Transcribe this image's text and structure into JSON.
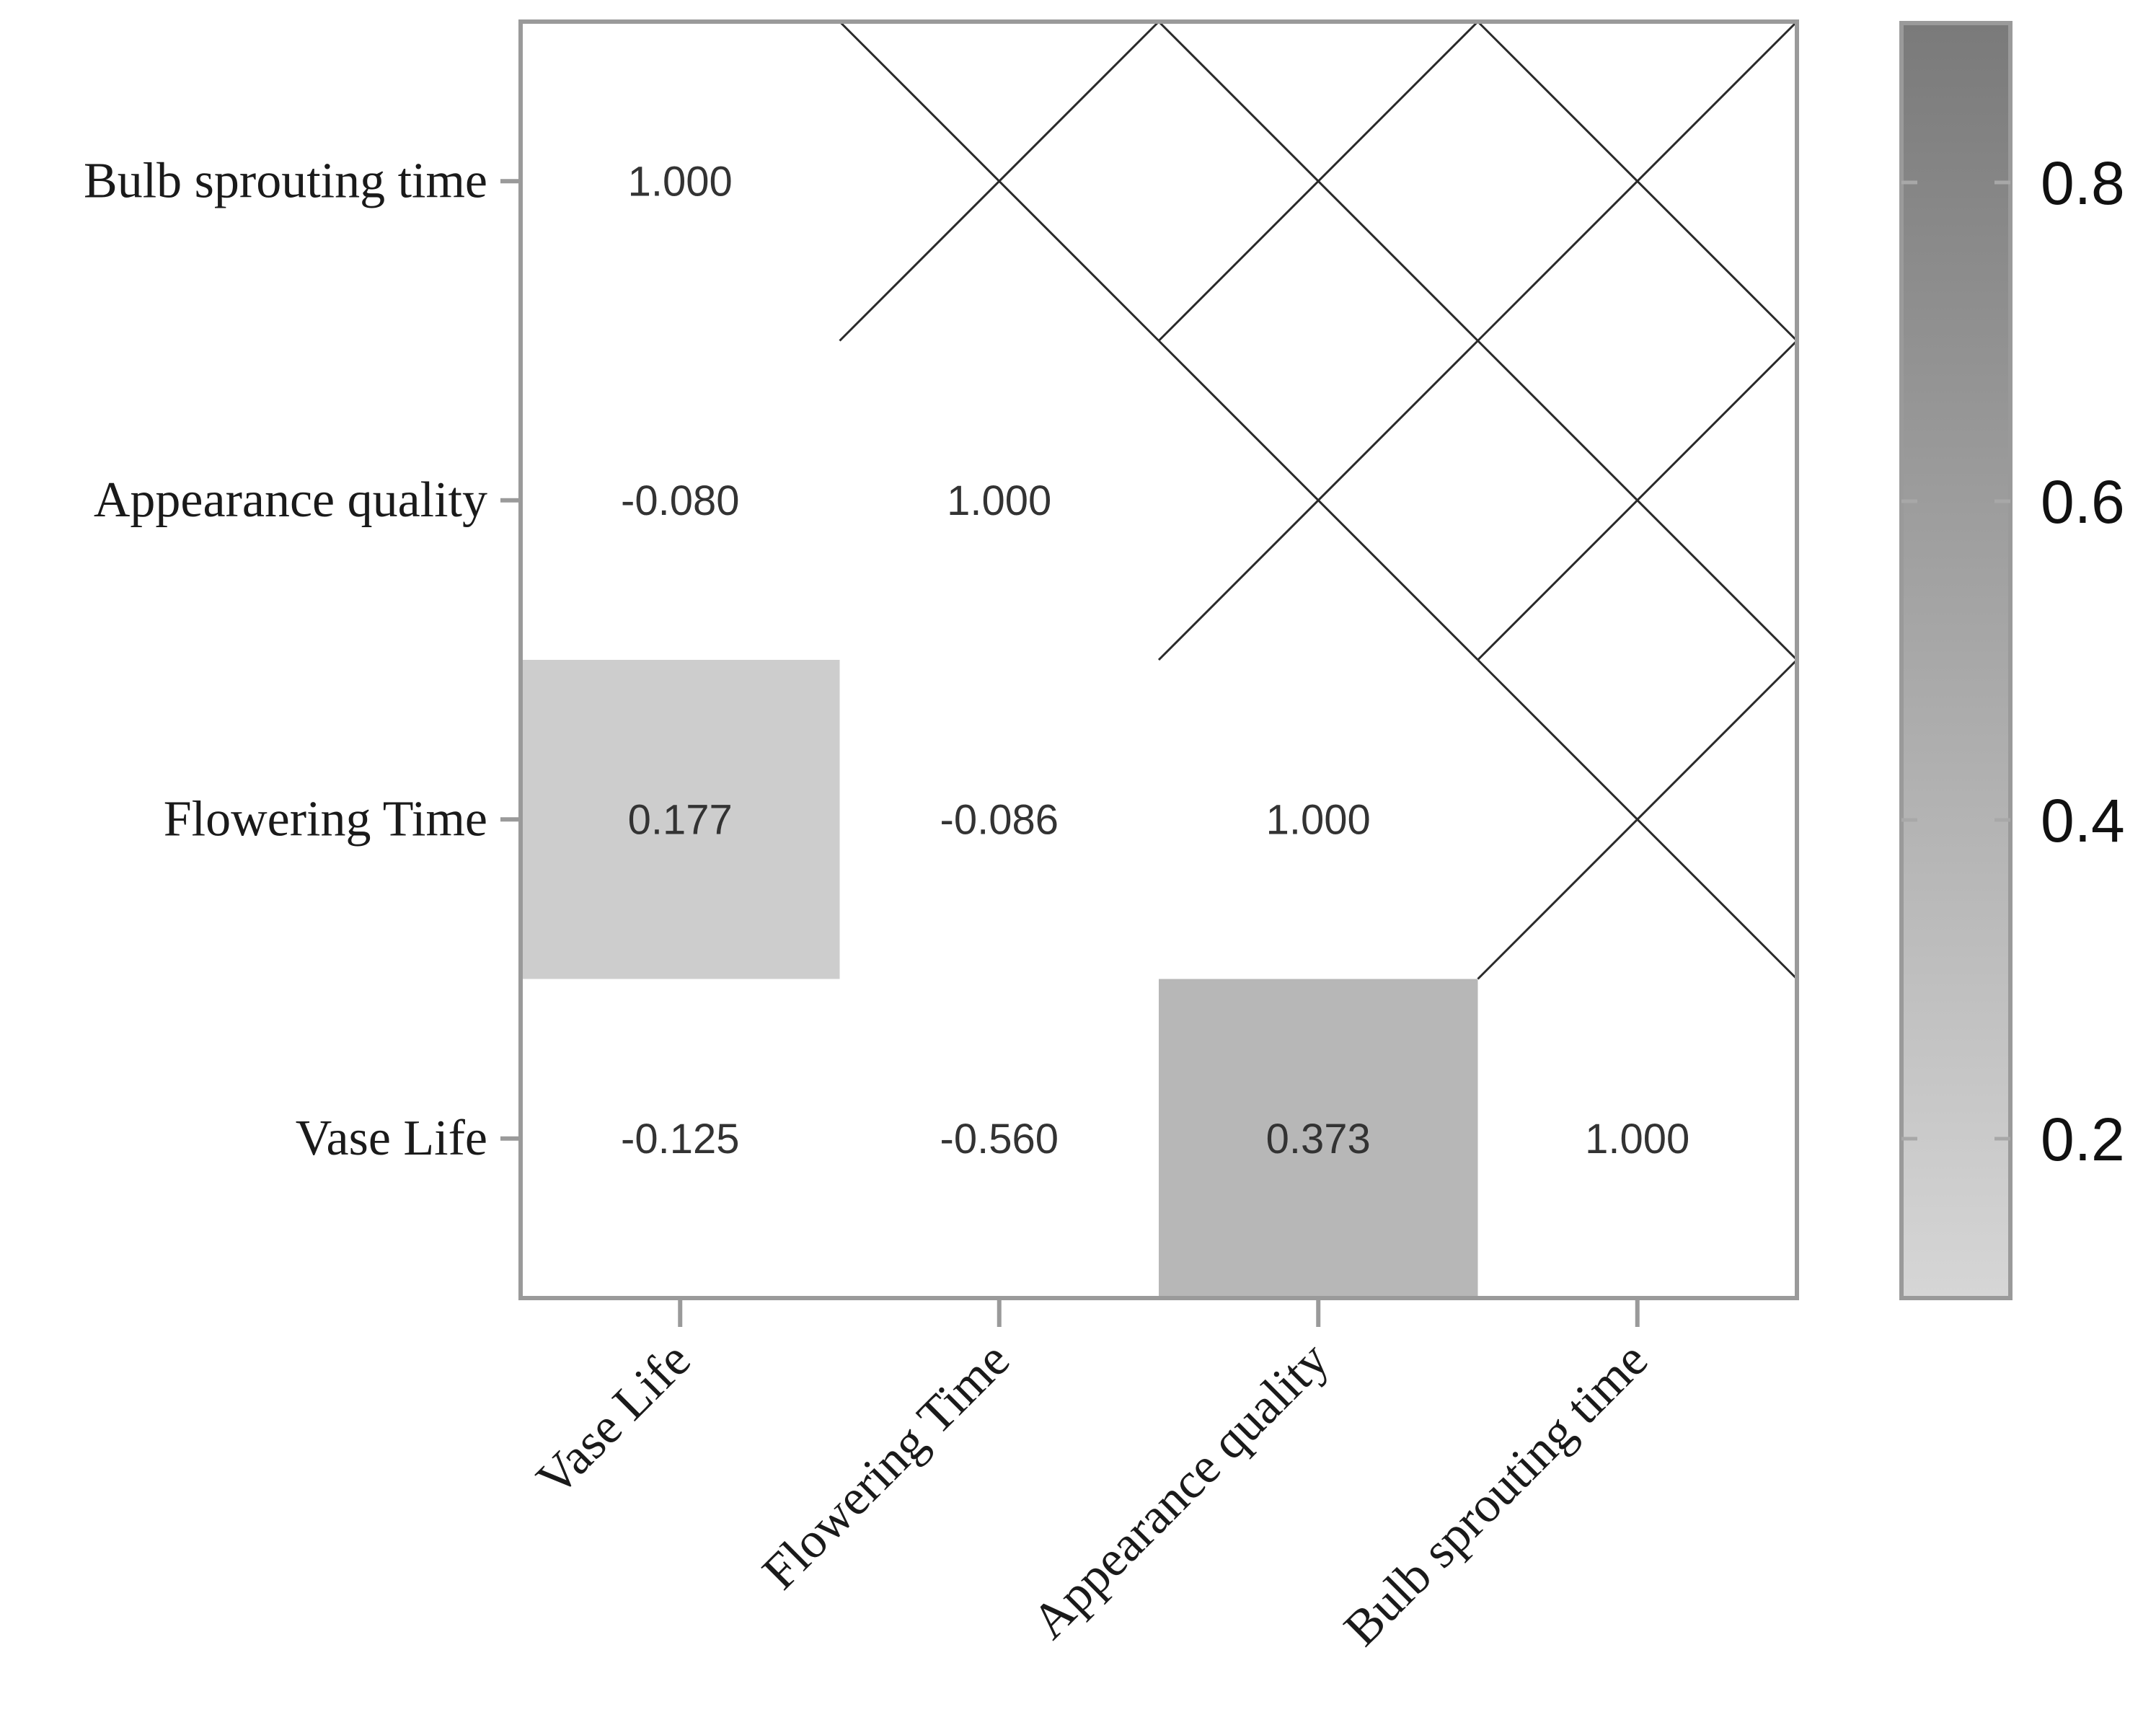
{
  "chart_data": {
    "type": "heatmap",
    "title": "",
    "xlabel": "",
    "ylabel": "",
    "x_categories": [
      "Vase Life",
      "Flowering Time",
      "Appearance quality",
      "Bulb sprouting time"
    ],
    "y_categories": [
      "Vase Life",
      "Flowering Time",
      "Appearance quality",
      "Bulb sprouting time"
    ],
    "cells": [
      {
        "x": "Vase Life",
        "y": "Vase Life",
        "value": -0.125,
        "label": "-0.125"
      },
      {
        "x": "Flowering Time",
        "y": "Vase Life",
        "value": -0.56,
        "label": "-0.560"
      },
      {
        "x": "Appearance quality",
        "y": "Vase Life",
        "value": 0.373,
        "label": "0.373"
      },
      {
        "x": "Bulb sprouting time",
        "y": "Vase Life",
        "value": 1.0,
        "label": "1.000"
      },
      {
        "x": "Vase Life",
        "y": "Flowering Time",
        "value": 0.177,
        "label": "0.177"
      },
      {
        "x": "Flowering Time",
        "y": "Flowering Time",
        "value": -0.086,
        "label": "-0.086"
      },
      {
        "x": "Appearance quality",
        "y": "Flowering Time",
        "value": 1.0,
        "label": "1.000"
      },
      {
        "x": "Vase Life",
        "y": "Appearance quality",
        "value": -0.08,
        "label": "-0.080"
      },
      {
        "x": "Flowering Time",
        "y": "Appearance quality",
        "value": 1.0,
        "label": "1.000"
      },
      {
        "x": "Vase Life",
        "y": "Bulb sprouting time",
        "value": 1.0,
        "label": "1.000"
      }
    ],
    "crossed_cells": [
      {
        "x": "Flowering Time",
        "y": "Bulb sprouting time"
      },
      {
        "x": "Appearance quality",
        "y": "Bulb sprouting time"
      },
      {
        "x": "Bulb sprouting time",
        "y": "Bulb sprouting time"
      },
      {
        "x": "Appearance quality",
        "y": "Appearance quality"
      },
      {
        "x": "Bulb sprouting time",
        "y": "Appearance quality"
      },
      {
        "x": "Bulb sprouting time",
        "y": "Flowering Time"
      }
    ],
    "colorbar": {
      "range": [
        0.1,
        0.9
      ],
      "ticks": [
        0.2,
        0.4,
        0.6,
        0.8
      ],
      "tick_labels": [
        "0.2",
        "0.4",
        "0.6",
        "0.8"
      ],
      "color_low": "#d6d6d6",
      "color_high": "#7a7a7a"
    },
    "grid": false,
    "legend_placement": "right"
  }
}
